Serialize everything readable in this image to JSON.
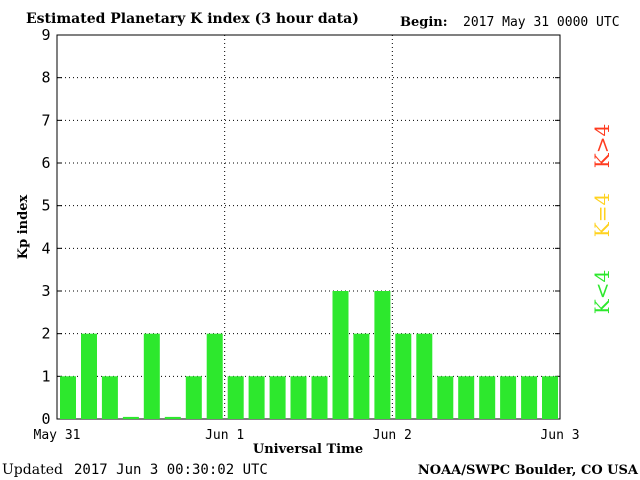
{
  "header": {
    "title": "Estimated Planetary K index (3 hour data)",
    "begin_label": "Begin:",
    "begin_value": "2017 May 31 0000 UTC"
  },
  "footer": {
    "updated_label": "Updated",
    "updated_value": "2017 Jun  3 00:30:02 UTC",
    "source": "NOAA/SWPC Boulder, CO USA"
  },
  "legend": {
    "items": [
      {
        "label": "K<4",
        "color": "#2de82d"
      },
      {
        "label": "K=4",
        "color": "#ffd21f"
      },
      {
        "label": "K>4",
        "color": "#ff3b1f"
      }
    ]
  },
  "chart_data": {
    "type": "bar",
    "title": "Estimated Planetary K index (3 hour data)",
    "xlabel": "Universal Time",
    "ylabel": "Kp index",
    "ylim": [
      0,
      9
    ],
    "yticks": [
      0,
      1,
      2,
      3,
      4,
      5,
      6,
      7,
      8,
      9
    ],
    "xticks": [
      "May 31",
      "Jun 1",
      "Jun 2",
      "Jun 3"
    ],
    "bar_color": "#2de82d",
    "grid": true,
    "values": [
      1,
      2,
      1,
      0.05,
      2,
      0.05,
      1,
      2,
      1,
      1,
      1,
      1,
      1,
      3,
      2,
      3,
      2,
      2,
      1,
      1,
      1,
      1,
      1,
      1
    ]
  }
}
